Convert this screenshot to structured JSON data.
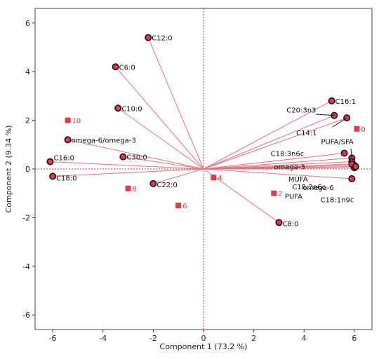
{
  "chart_data": {
    "type": "scatter",
    "title": "",
    "xlabel": "Component 1  (73.2 %)",
    "ylabel": "Component 2  (9.34 %)",
    "xlim": [
      -6.7,
      6.7
    ],
    "ylim": [
      -6.6,
      6.6
    ],
    "x_ticks": [
      -6,
      -4,
      -2,
      0,
      2,
      4,
      6
    ],
    "y_ticks": [
      -6,
      -4,
      -2,
      0,
      2,
      4,
      6
    ],
    "grid": false,
    "reference_lines": [
      0,
      0
    ],
    "colors": {
      "vector": "#e8707f",
      "marker": "#e8364a",
      "observation": "#e8364a",
      "axis": "#333333"
    },
    "loadings": [
      {
        "label": "C12:0",
        "x": -2.2,
        "y": 5.4
      },
      {
        "label": "C6:0",
        "x": -3.5,
        "y": 4.2
      },
      {
        "label": "C10:0",
        "x": -3.4,
        "y": 2.5
      },
      {
        "label": "omega-6/omega-3",
        "x": -5.4,
        "y": 1.2
      },
      {
        "label": "C16:0",
        "x": -6.1,
        "y": 0.3
      },
      {
        "label": "C30:0",
        "x": -3.2,
        "y": 0.5
      },
      {
        "label": "C18:0",
        "x": -6.0,
        "y": -0.3
      },
      {
        "label": "C22:0",
        "x": -2.0,
        "y": -0.6
      },
      {
        "label": "C8:0",
        "x": 3.0,
        "y": -2.2
      },
      {
        "label": "C16:1",
        "x": 5.1,
        "y": 2.8
      },
      {
        "label": "C20:3n3",
        "x": 5.2,
        "y": 2.2
      },
      {
        "label": "C14:1",
        "x": 5.7,
        "y": 2.1
      },
      {
        "label": "PUFA/SFA",
        "x": 5.9,
        "y": 0.45
      },
      {
        "label": "C18:3n6c",
        "x": 5.6,
        "y": 0.65
      },
      {
        "label": "omega-3",
        "x": 5.9,
        "y": 0.3
      },
      {
        "label": "MUFA",
        "x": 6.0,
        "y": 0.15
      },
      {
        "label": "PUFA",
        "x": 6.0,
        "y": 0.05
      },
      {
        "label": "C18:2n6c",
        "x": 5.9,
        "y": 0.2
      },
      {
        "label": "C18:1n9c",
        "x": 6.05,
        "y": 0.1
      },
      {
        "label": "omega-6",
        "x": 5.9,
        "y": -0.4
      }
    ],
    "observations": [
      {
        "label": "0",
        "x": 6.1,
        "y": 1.65
      },
      {
        "label": "2",
        "x": 2.8,
        "y": -1.0
      },
      {
        "label": "4",
        "x": 0.4,
        "y": -0.35
      },
      {
        "label": "6",
        "x": -1.0,
        "y": -1.5
      },
      {
        "label": "8",
        "x": -3.0,
        "y": -0.8
      },
      {
        "label": "10",
        "x": -5.4,
        "y": 2.0
      }
    ]
  }
}
